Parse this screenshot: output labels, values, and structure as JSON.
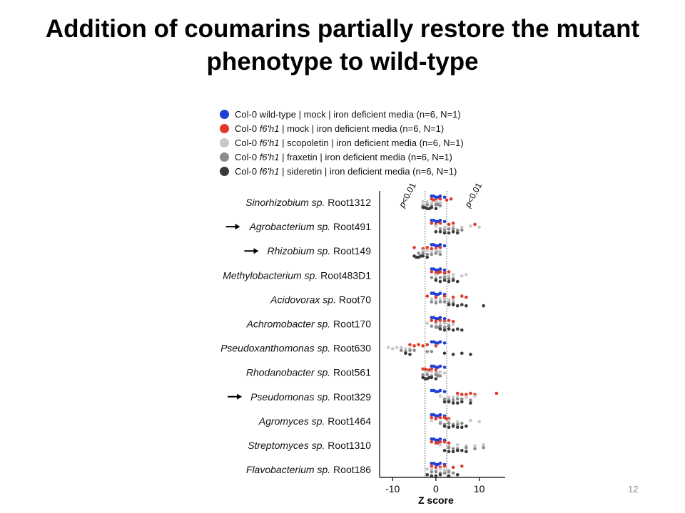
{
  "slide": {
    "title_line1": "Addition of coumarins  partially restore the mutant",
    "title_line2": "phenotype to wild-type",
    "page_number": "12"
  },
  "colors": {
    "wild_type_mock": "#1f3fd6",
    "f6h1_mock": "#e0392b",
    "f6h1_scopoletin": "#c8c8c8",
    "f6h1_fraxetin": "#8c8c8c",
    "f6h1_sideretin": "#3a3a3a"
  },
  "legend": [
    {
      "label": "Col-0 wild-type | mock | iron deficient media (n=6, N=1)",
      "color": "#1f3fd6"
    },
    {
      "label": "Col-0 f6'h1 | mock | iron deficient media (n=6, N=1)",
      "color": "#e0392b"
    },
    {
      "label": "Col-0 f6'h1 | scopoletin | iron deficient media (n=6, N=1)",
      "color": "#c8c8c8"
    },
    {
      "label": "Col-0 f6'h1 | fraxetin | iron deficient media (n=6, N=1)",
      "color": "#8c8c8c"
    },
    {
      "label": "Col-0 f6'h1 | sideretin | iron deficient media (n=6, N=1)",
      "color": "#3a3a3a"
    }
  ],
  "chart_data": {
    "type": "scatter",
    "xlabel": "Z score",
    "xlim": [
      -13,
      16
    ],
    "xticks": [
      -10,
      0,
      10
    ],
    "threshold_lines": [
      -2.5,
      2.5
    ],
    "threshold_labels": [
      "p<0.01",
      "p<0.01"
    ],
    "categories": [
      {
        "genus": "Sinorhizobium sp.",
        "strain": "Root1312",
        "arrow": false
      },
      {
        "genus": "Agrobacterium sp.",
        "strain": "Root491",
        "arrow": true
      },
      {
        "genus": "Rhizobium sp.",
        "strain": "Root149",
        "arrow": true
      },
      {
        "genus": "Methylobacterium sp.",
        "strain": "Root483D1",
        "arrow": false
      },
      {
        "genus": "Acidovorax sp.",
        "strain": "Root70",
        "arrow": false
      },
      {
        "genus": "Achromobacter sp.",
        "strain": "Root170",
        "arrow": false
      },
      {
        "genus": "Pseudoxanthomonas sp.",
        "strain": "Root630",
        "arrow": false
      },
      {
        "genus": "Rhodanobacter sp.",
        "strain": "Root561",
        "arrow": false
      },
      {
        "genus": "Pseudomonas sp.",
        "strain": "Root329",
        "arrow": true
      },
      {
        "genus": "Agromyces sp.",
        "strain": "Root1464",
        "arrow": false
      },
      {
        "genus": "Streptomyces sp.",
        "strain": "Root1310",
        "arrow": false
      },
      {
        "genus": "Flavobacterium sp.",
        "strain": "Root186",
        "arrow": false
      }
    ],
    "series": [
      {
        "name": "Col-0 wild-type | mock | iron deficient media (n=6, N=1)",
        "color": "#1f3fd6",
        "values": [
          [
            -1,
            0,
            1,
            2,
            -0.5,
            0.5
          ],
          [
            -1,
            0,
            1,
            2,
            -0.5,
            0.5
          ],
          [
            -1,
            0,
            1,
            2,
            -0.5,
            0.5
          ],
          [
            -1,
            0,
            1,
            2,
            -0.5,
            0.5
          ],
          [
            -1,
            0,
            1,
            2,
            -0.5,
            0.5
          ],
          [
            -1,
            0,
            1,
            2,
            -0.5,
            0.5
          ],
          [
            -1,
            0,
            1,
            2,
            -0.5,
            0.5
          ],
          [
            -1,
            0,
            1,
            2,
            -0.5,
            0.5
          ],
          [
            -1,
            0,
            1,
            2,
            -0.5,
            0.5
          ],
          [
            -1,
            0,
            1,
            2,
            -0.5,
            0.5
          ],
          [
            -1,
            0,
            1,
            2,
            -0.5,
            0.5
          ],
          [
            -1,
            0,
            1,
            2,
            -0.5,
            0.5
          ]
        ]
      },
      {
        "name": "Col-0 f6'h1 | mock | iron deficient media (n=6, N=1)",
        "color": "#e0392b",
        "values": [
          [
            -1,
            0,
            1,
            2.5,
            3.5,
            -0.5
          ],
          [
            -1,
            0,
            1,
            3,
            4,
            9
          ],
          [
            -5,
            -3,
            -2,
            0,
            1,
            -1
          ],
          [
            -1,
            0,
            1,
            2,
            3,
            0.5
          ],
          [
            -2,
            0,
            2,
            4,
            6,
            7
          ],
          [
            -1,
            0,
            1,
            2,
            3,
            4
          ],
          [
            -6,
            -5,
            -4,
            -3,
            -2,
            0
          ],
          [
            -3,
            -2,
            -1,
            0,
            -2.5,
            -1.5
          ],
          [
            5,
            6,
            8,
            9,
            14,
            7
          ],
          [
            -1,
            0,
            2,
            3,
            1,
            2.5
          ],
          [
            -1,
            0,
            1,
            3,
            2,
            0.5
          ],
          [
            -1,
            0,
            2,
            4,
            6,
            1
          ]
        ]
      },
      {
        "name": "Col-0 f6'h1 | scopoletin | iron deficient media (n=6, N=1)",
        "color": "#c8c8c8",
        "values": [
          [
            -3,
            -1,
            0,
            1,
            -2,
            0.5
          ],
          [
            0,
            2,
            4,
            6,
            8,
            10
          ],
          [
            -3,
            -1,
            0,
            1,
            -2,
            0.5
          ],
          [
            0,
            2,
            4,
            6,
            7,
            3
          ],
          [
            -1,
            0,
            2,
            4,
            1,
            3
          ],
          [
            -2,
            0,
            2,
            4,
            1,
            3
          ],
          [
            -11,
            -10,
            -8,
            -7,
            -9,
            -6
          ],
          [
            -2,
            0,
            1,
            2,
            -1,
            0.5
          ],
          [
            1,
            3,
            5,
            7,
            9,
            4
          ],
          [
            -1,
            1,
            3,
            5,
            8,
            10
          ],
          [
            1,
            3,
            5,
            9,
            11,
            7
          ],
          [
            -2,
            0,
            1,
            3,
            -1,
            2
          ]
        ]
      },
      {
        "name": "Col-0 f6'h1 | fraxetin | iron deficient media (n=6, N=1)",
        "color": "#8c8c8c",
        "values": [
          [
            -2,
            -1,
            0,
            -3,
            0.5,
            1
          ],
          [
            1,
            2,
            4,
            6,
            3,
            5
          ],
          [
            -4,
            -2,
            0,
            1,
            -3,
            -1
          ],
          [
            -1,
            0,
            2,
            3,
            1,
            4
          ],
          [
            -1,
            0,
            2,
            4,
            1,
            3
          ],
          [
            -1,
            0,
            1,
            2,
            3,
            0.5
          ],
          [
            -8,
            -7,
            -6,
            -1,
            -5,
            -2
          ],
          [
            -3,
            -1,
            0,
            1,
            -2,
            0.5
          ],
          [
            2,
            4,
            6,
            8,
            5,
            3
          ],
          [
            1,
            2,
            3,
            5,
            6,
            4
          ],
          [
            3,
            5,
            7,
            9,
            11,
            4
          ],
          [
            -1,
            1,
            3,
            2,
            0,
            4
          ]
        ]
      },
      {
        "name": "Col-0 f6'h1 | sideretin | iron deficient media (n=6, N=1)",
        "color": "#3a3a3a",
        "values": [
          [
            -3,
            -2,
            -1,
            0,
            -2.5,
            -1.5
          ],
          [
            0,
            2,
            4,
            5,
            1,
            3
          ],
          [
            -5,
            -4,
            -3,
            -4.5,
            -3.5,
            -2
          ],
          [
            0,
            1,
            2,
            3,
            4,
            5
          ],
          [
            4,
            5,
            6,
            11,
            3,
            7
          ],
          [
            1,
            2,
            3,
            4,
            5,
            6
          ],
          [
            -7,
            -6,
            2,
            4,
            6,
            8
          ],
          [
            -3,
            -2,
            -1,
            -2.5,
            -1.5,
            0
          ],
          [
            2,
            4,
            6,
            8,
            3,
            5
          ],
          [
            2,
            3,
            4,
            5,
            7,
            6
          ],
          [
            2,
            4,
            6,
            3,
            5,
            7
          ],
          [
            -2,
            0,
            1,
            3,
            5,
            -1
          ]
        ]
      }
    ]
  }
}
